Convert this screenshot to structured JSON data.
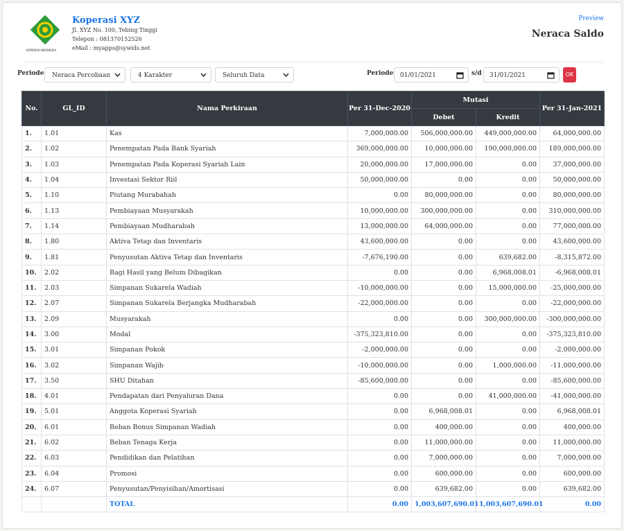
{
  "header": {
    "org_name": "Koperasi XYZ",
    "address": "Jl. XYZ No. 100, Tebing Tinggi",
    "phone": "Telepon : 081370152526",
    "email": "eMail : myapps@sywids.net",
    "logo_caption": "KOPERASI INDONESIA",
    "preview_link": "Preview",
    "report_title": "Neraca Saldo"
  },
  "filters": {
    "periode_label": "Periode :",
    "report_type": "Neraca Percobaan",
    "level": "4 Karakter",
    "scope": "Seluruh Data",
    "date_label": "Periode :",
    "date_from": "01/01/2021",
    "separator": "s/d",
    "date_to": "31/01/2021",
    "submit": "OK"
  },
  "table": {
    "columns": {
      "no": "No.",
      "gl_id": "GL_ID",
      "name": "Nama Perkiraan",
      "opening": "Per 31-Dec-2020",
      "mutation": "Mutasi",
      "debit": "Debet",
      "credit": "Kredit",
      "closing": "Per 31-Jan-2021"
    },
    "rows": [
      [
        "1.",
        "1.01",
        "Kas",
        "7,000,000.00",
        "506,000,000.00",
        "449,000,000.00",
        "64,000,000.00"
      ],
      [
        "2.",
        "1.02",
        "Penempatan Pada Bank Syariah",
        "369,000,000.00",
        "10,000,000.00",
        "190,000,000.00",
        "189,000,000.00"
      ],
      [
        "3.",
        "1.03",
        "Penempatan Pada Koperasi Syariah Lain",
        "20,000,000.00",
        "17,000,000.00",
        "0.00",
        "37,000,000.00"
      ],
      [
        "4.",
        "1.04",
        "Investasi Sektor Riil",
        "50,000,000.00",
        "0.00",
        "0.00",
        "50,000,000.00"
      ],
      [
        "5.",
        "1.10",
        "Piutang Murabahah",
        "0.00",
        "80,000,000.00",
        "0.00",
        "80,000,000.00"
      ],
      [
        "6.",
        "1.13",
        "Pembiayaan Musyarakah",
        "10,000,000.00",
        "300,000,000.00",
        "0.00",
        "310,000,000.00"
      ],
      [
        "7.",
        "1.14",
        "Pembiayaan Mudharabah",
        "13,000,000.00",
        "64,000,000.00",
        "0.00",
        "77,000,000.00"
      ],
      [
        "8.",
        "1.80",
        "Aktiva Tetap dan Inventaris",
        "43,600,000.00",
        "0.00",
        "0.00",
        "43,600,000.00"
      ],
      [
        "9.",
        "1.81",
        "Penyusutan Aktiva Tetap dan Inventaris",
        "-7,676,190.00",
        "0.00",
        "639,682.00",
        "-8,315,872.00"
      ],
      [
        "10.",
        "2.02",
        "Bagi Hasil yang Belum Dibagikan",
        "0.00",
        "0.00",
        "6,968,008.01",
        "-6,968,008.01"
      ],
      [
        "11.",
        "2.03",
        "Simpanan Sukarela Wadiah",
        "-10,000,000.00",
        "0.00",
        "15,000,000.00",
        "-25,000,000.00"
      ],
      [
        "12.",
        "2.07",
        "Simpanan Sukarela Berjangka Mudharabah",
        "-22,000,000.00",
        "0.00",
        "0.00",
        "-22,000,000.00"
      ],
      [
        "13.",
        "2.09",
        "Musyarakah",
        "0.00",
        "0.00",
        "300,000,000.00",
        "-300,000,000.00"
      ],
      [
        "14.",
        "3.00",
        "Modal",
        "-375,323,810.00",
        "0.00",
        "0.00",
        "-375,323,810.00"
      ],
      [
        "15.",
        "3.01",
        "Simpanan Pokok",
        "-2,000,000.00",
        "0.00",
        "0.00",
        "-2,000,000.00"
      ],
      [
        "16.",
        "3.02",
        "Simpanan Wajib",
        "-10,000,000.00",
        "0.00",
        "1,000,000.00",
        "-11,000,000.00"
      ],
      [
        "17.",
        "3.50",
        "SHU Ditahan",
        "-85,600,000.00",
        "0.00",
        "0.00",
        "-85,600,000.00"
      ],
      [
        "18.",
        "4.01",
        "Pendapatan dari Penyaluran Dana",
        "0.00",
        "0.00",
        "41,000,000.00",
        "-41,000,000.00"
      ],
      [
        "19.",
        "5.01",
        "Anggota Koperasi Syariah",
        "0.00",
        "6,968,008.01",
        "0.00",
        "6,968,008.01"
      ],
      [
        "20.",
        "6.01",
        "Beban Bonus Simpanan Wadiah",
        "0.00",
        "400,000.00",
        "0.00",
        "400,000.00"
      ],
      [
        "21.",
        "6.02",
        "Beban Tenaga Kerja",
        "0.00",
        "11,000,000.00",
        "0.00",
        "11,000,000.00"
      ],
      [
        "22.",
        "6.03",
        "Pendidikan dan Pelatihan",
        "0.00",
        "7,000,000.00",
        "0.00",
        "7,000,000.00"
      ],
      [
        "23.",
        "6.04",
        "Promosi",
        "0.00",
        "600,000.00",
        "0.00",
        "600,000.00"
      ],
      [
        "24.",
        "6.07",
        "Penyusutan/Penyisihan/Amortisasi",
        "0.00",
        "639,682.00",
        "0.00",
        "639,682.00"
      ]
    ],
    "total": {
      "label": "TOTAL",
      "values": [
        "0.00",
        "1,003,607,690.01",
        "1,003,607,690.01",
        "0.00"
      ]
    }
  }
}
